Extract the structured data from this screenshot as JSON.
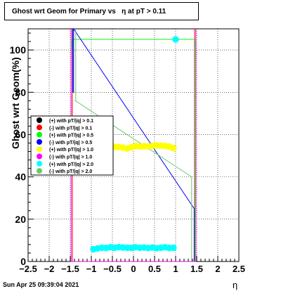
{
  "title": "Ghost wrt Geom for Primary vs   η at pT > 0.11",
  "footer": "Sun Apr 25 09:39:04 2021",
  "chart_data": {
    "type": "scatter",
    "title": "Ghost wrt Geom for Primary vs   η at pT > 0.11",
    "xlabel": "η",
    "ylabel": "Ghost wrt Geom(%)",
    "xlim": [
      -2.5,
      2.5
    ],
    "ylim": [
      0,
      110
    ],
    "xticks": [
      -2.5,
      -2,
      -1.5,
      -1,
      -0.5,
      0,
      0.5,
      1,
      1.5,
      2,
      2.5
    ],
    "xtick_labels": [
      "−2.5",
      "−2",
      "−1.5",
      "−1",
      "−0.5",
      "0",
      "0.5",
      "1",
      "1.5",
      "2",
      "2.5"
    ],
    "yticks": [
      0,
      20,
      40,
      60,
      80,
      100
    ],
    "grid": true,
    "legend_position": "left-middle",
    "series": [
      {
        "name": "(+) with pT/|q| > 0.1",
        "color": "#000000",
        "x": [
          -1.45,
          1.45
        ],
        "y": [
          110,
          0
        ],
        "steps": [
          [
            -1.45,
            110
          ],
          [
            -1.45,
            0
          ],
          [
            1.45,
            0
          ],
          [
            1.45,
            110
          ]
        ]
      },
      {
        "name": "(-) with pT/|q| > 0.1",
        "color": "#ff0000",
        "x": [
          -1.45,
          1.45
        ],
        "y": [
          110,
          0
        ],
        "steps": [
          [
            -1.45,
            110
          ],
          [
            -1.45,
            0
          ],
          [
            1.45,
            0
          ],
          [
            1.45,
            110
          ]
        ]
      },
      {
        "name": "(+) with pT/|q| > 0.5",
        "color": "#00ff00",
        "x": [
          -1.45,
          -1.35,
          1.35,
          1.45
        ],
        "y": [
          105,
          105,
          105,
          0
        ],
        "steps": [
          [
            -1.46,
            100
          ],
          [
            -1.46,
            105
          ],
          [
            1.46,
            105
          ],
          [
            1.46,
            0
          ]
        ]
      },
      {
        "name": "(-) with pT/|q| > 0.5",
        "color": "#0000ff",
        "x": [
          -1.45,
          1.45
        ],
        "y": [
          110,
          25
        ],
        "steps": [
          [
            -1.44,
            110
          ],
          [
            -1.44,
            80
          ],
          [
            -1.42,
            80
          ],
          [
            -1.42,
            110
          ],
          [
            1.44,
            25
          ],
          [
            1.44,
            0
          ]
        ]
      },
      {
        "name": "(+) with pT/|q| > 1.0",
        "color": "#ffff00",
        "x": [
          -0.45,
          -0.35,
          -0.25,
          -0.15,
          -0.05,
          0.05,
          0.15,
          0.25,
          0.35,
          0.45,
          0.55,
          0.65,
          0.75,
          0.85,
          0.95
        ],
        "y": [
          54.2,
          54.1,
          53.8,
          53.4,
          54.0,
          54.6,
          54.3,
          54.5,
          54.4,
          54.7,
          54.9,
          54.8,
          54.6,
          54.3,
          53.6
        ]
      },
      {
        "name": "(-) with pT/|q| > 1.0",
        "color": "#ff00ff",
        "x": [
          -1.48,
          1.48
        ],
        "y": [
          110,
          110
        ],
        "steps": [
          [
            -1.48,
            110
          ],
          [
            -1.48,
            0
          ],
          [
            1.48,
            0
          ],
          [
            1.48,
            110
          ]
        ]
      },
      {
        "name": "(+) with pT/|q| > 2.0",
        "color": "#00ffff",
        "x": [
          -0.95,
          -0.85,
          -0.75,
          -0.65,
          -0.55,
          -0.45,
          -0.35,
          -0.25,
          -0.15,
          -0.05,
          0.05,
          0.15,
          0.25,
          0.35,
          0.45,
          0.55,
          0.65,
          0.75,
          0.85,
          0.95,
          1.0
        ],
        "y": [
          5.8,
          6.2,
          6.5,
          6.4,
          6.7,
          6.5,
          6.8,
          6.6,
          6.5,
          6.4,
          6.7,
          6.5,
          6.6,
          6.4,
          6.6,
          6.3,
          6.5,
          6.7,
          6.4,
          6.5,
          105
        ]
      },
      {
        "name": "(-) with pT/|q| > 2.0",
        "color": "#66cc66",
        "x": [
          -1.38,
          1.38
        ],
        "y": [
          78,
          40
        ],
        "steps": [
          [
            -1.37,
            110
          ],
          [
            -1.37,
            76
          ],
          [
            -1.38,
            76
          ],
          [
            1.38,
            40
          ],
          [
            1.38,
            0
          ]
        ]
      }
    ]
  }
}
